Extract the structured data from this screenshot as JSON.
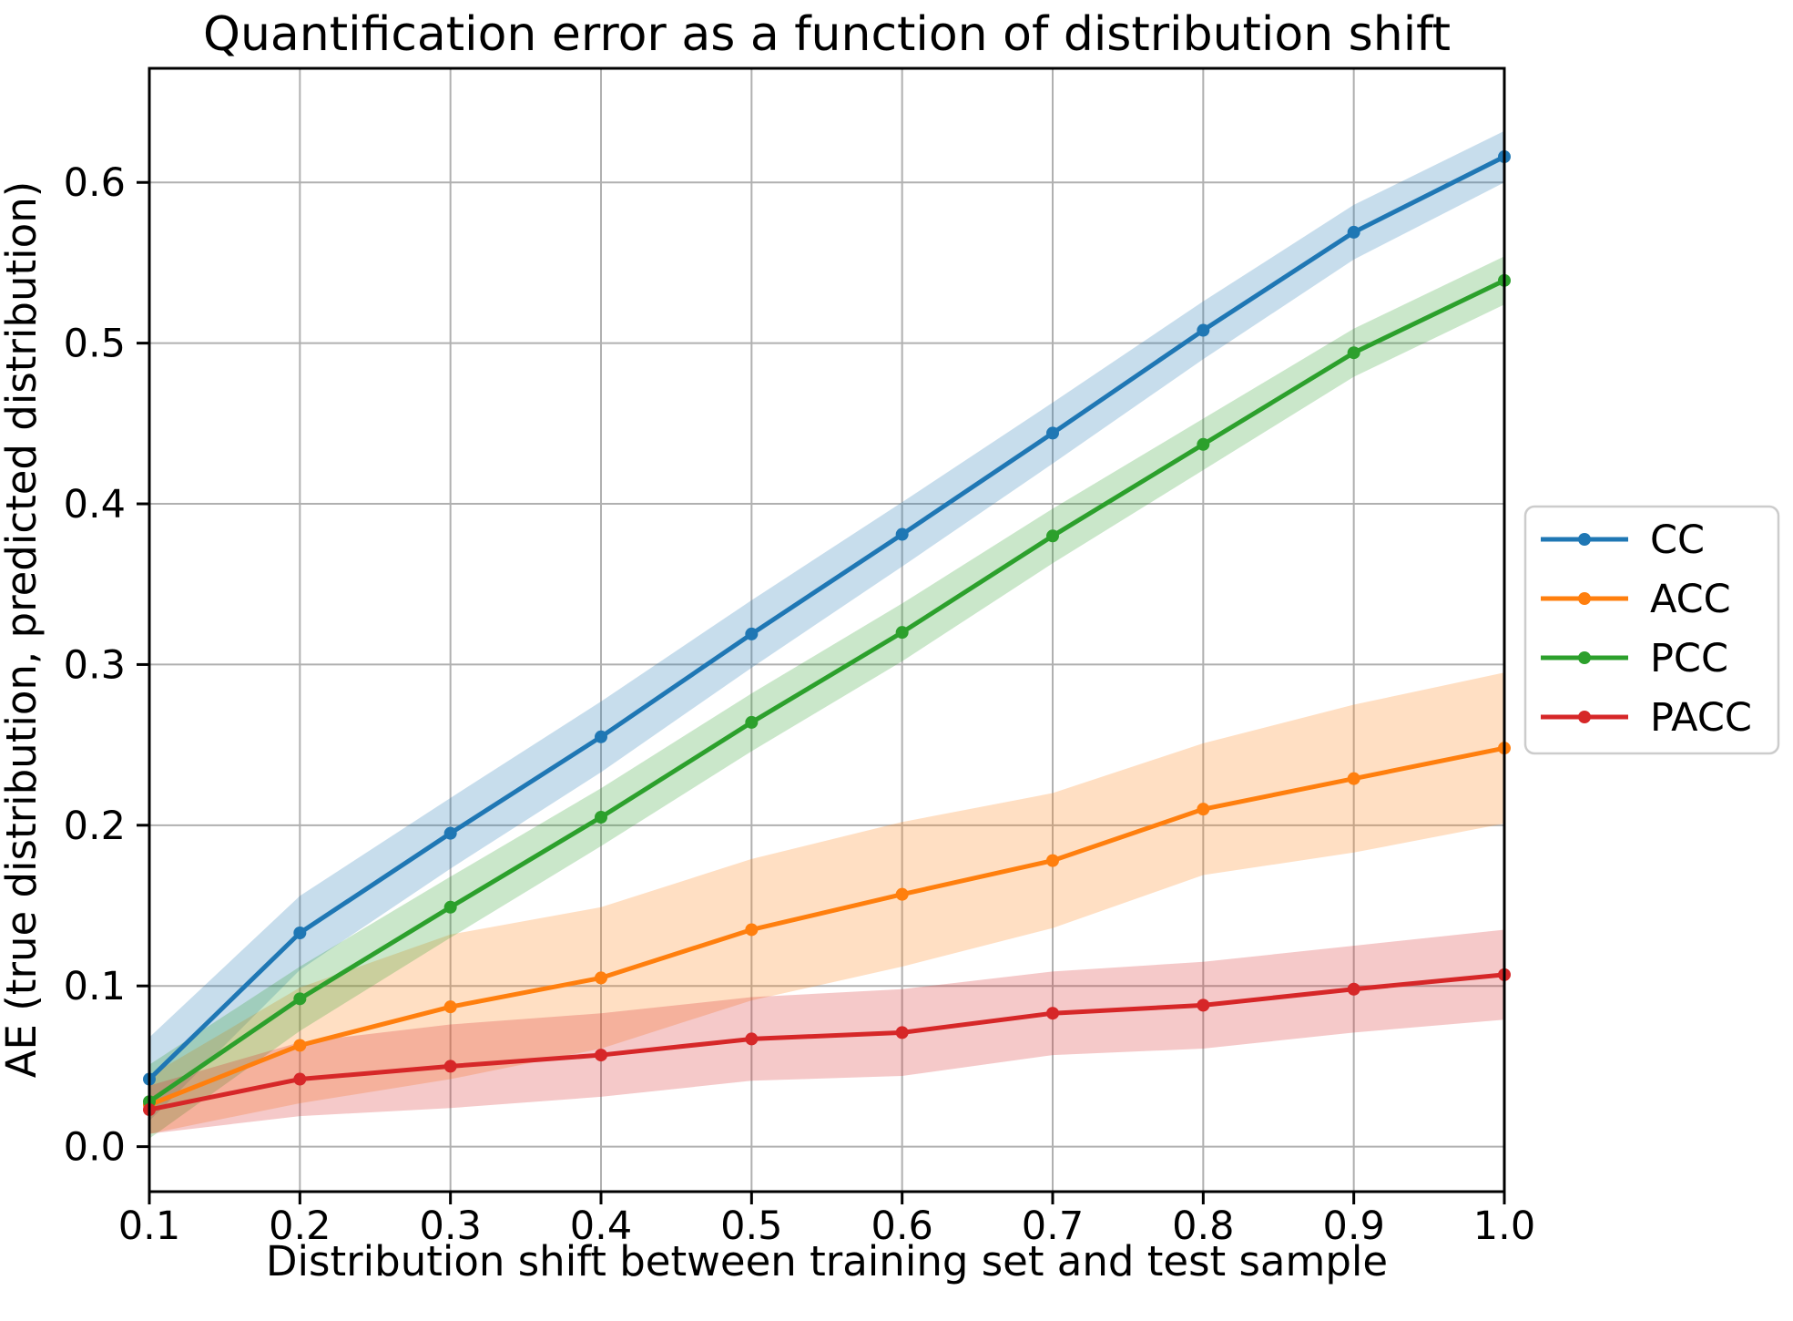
{
  "page": {
    "background": "#ffffff"
  },
  "chart_data": {
    "type": "line",
    "title": "Quantification error as a function of distribution shift",
    "xlabel": "Distribution shift between training set and test sample",
    "ylabel": "AE (true distribution, predicted distribution)",
    "x": [
      0.1,
      0.2,
      0.3,
      0.4,
      0.5,
      0.6,
      0.7,
      0.8,
      0.9,
      1.0
    ],
    "xticks": [
      "0.1",
      "0.2",
      "0.3",
      "0.4",
      "0.5",
      "0.6",
      "0.7",
      "0.8",
      "0.9",
      "1.0"
    ],
    "yticks": [
      "0.0",
      "0.1",
      "0.2",
      "0.3",
      "0.4",
      "0.5",
      "0.6"
    ],
    "ytick_values": [
      0.0,
      0.1,
      0.2,
      0.3,
      0.4,
      0.5,
      0.6
    ],
    "xlim": [
      0.1,
      1.0
    ],
    "ylim": [
      -0.028,
      0.671
    ],
    "grid": true,
    "grid_color": "#b0b0b0",
    "band_opacity": 0.25,
    "legend": {
      "position": "right-outside",
      "entries": [
        "CC",
        "ACC",
        "PCC",
        "PACC"
      ]
    },
    "series": [
      {
        "name": "CC",
        "color": "#1f77b4",
        "values": [
          0.042,
          0.133,
          0.195,
          0.255,
          0.319,
          0.381,
          0.444,
          0.508,
          0.569,
          0.616
        ],
        "band_halfwidth": [
          0.026,
          0.023,
          0.022,
          0.022,
          0.021,
          0.02,
          0.019,
          0.018,
          0.017,
          0.016
        ]
      },
      {
        "name": "ACC",
        "color": "#ff7f0e",
        "values": [
          0.026,
          0.063,
          0.087,
          0.105,
          0.135,
          0.157,
          0.178,
          0.21,
          0.229,
          0.248
        ],
        "band_halfwidth": [
          0.018,
          0.036,
          0.045,
          0.044,
          0.044,
          0.045,
          0.042,
          0.041,
          0.046,
          0.047
        ]
      },
      {
        "name": "PCC",
        "color": "#2ca02c",
        "values": [
          0.028,
          0.092,
          0.149,
          0.205,
          0.264,
          0.32,
          0.38,
          0.437,
          0.494,
          0.539
        ],
        "band_halfwidth": [
          0.023,
          0.02,
          0.019,
          0.018,
          0.018,
          0.018,
          0.017,
          0.016,
          0.015,
          0.015
        ]
      },
      {
        "name": "PACC",
        "color": "#d62728",
        "values": [
          0.023,
          0.042,
          0.05,
          0.057,
          0.067,
          0.071,
          0.083,
          0.088,
          0.098,
          0.107
        ],
        "band_halfwidth": [
          0.015,
          0.023,
          0.026,
          0.026,
          0.026,
          0.027,
          0.026,
          0.027,
          0.027,
          0.028
        ]
      }
    ]
  }
}
